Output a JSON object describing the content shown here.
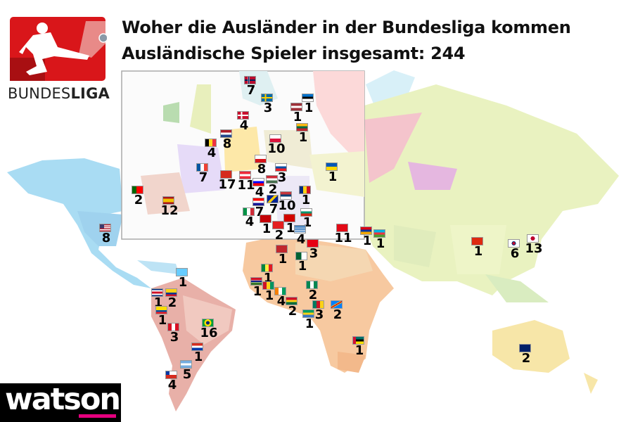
{
  "header": {
    "title": "Woher die Ausländer in der Bundesliga kommen",
    "subtitle": "Ausländische Spieler insgesamt: 244"
  },
  "logo": {
    "bundesliga_light": "BUNDES",
    "bundesliga_bold": "LIGA"
  },
  "brand": {
    "watson": "watson",
    "watson_accent": "#e5007e",
    "bundesliga_red": "#d9161a"
  },
  "markers": [
    {
      "flag": "norway-flag",
      "count": "7"
    },
    {
      "flag": "sweden-flag",
      "count": "3"
    },
    {
      "flag": "estonia-flag",
      "count": "1"
    },
    {
      "flag": "latvia-flag",
      "count": "1"
    },
    {
      "flag": "denmark-flag",
      "count": "4"
    },
    {
      "flag": "lithuania-flag",
      "count": "1"
    },
    {
      "flag": "netherlands-flag",
      "count": "8"
    },
    {
      "flag": "belgium-flag",
      "count": "4"
    },
    {
      "flag": "poland-flag",
      "count": "10"
    },
    {
      "flag": "czech-republic-flag",
      "count": "8"
    },
    {
      "flag": "slovakia-flag",
      "count": "3"
    },
    {
      "flag": "ukraine-flag",
      "count": "1"
    },
    {
      "flag": "france-flag",
      "count": "7"
    },
    {
      "flag": "switzerland-flag",
      "count": "17"
    },
    {
      "flag": "austria-flag",
      "count": "11"
    },
    {
      "flag": "slovenia-flag",
      "count": "4"
    },
    {
      "flag": "hungary-flag",
      "count": "2"
    },
    {
      "flag": "romania-flag",
      "count": "1"
    },
    {
      "flag": "serbia-flag",
      "count": "10"
    },
    {
      "flag": "portugal-flag",
      "count": "2"
    },
    {
      "flag": "spain-flag",
      "count": "12"
    },
    {
      "flag": "croatia-flag",
      "count": "7"
    },
    {
      "flag": "bosnia-flag",
      "count": "7"
    },
    {
      "flag": "bulgaria-flag",
      "count": "1"
    },
    {
      "flag": "italy-flag",
      "count": "4"
    },
    {
      "flag": "montenegro-flag",
      "count": "1"
    },
    {
      "flag": "albania-flag",
      "count": "2"
    },
    {
      "flag": "macedonia-flag",
      "count": "1"
    },
    {
      "flag": "greece-flag",
      "count": "4"
    },
    {
      "flag": "turkey-flag",
      "count": "11"
    },
    {
      "flag": "armenia-flag",
      "count": "1"
    },
    {
      "flag": "azerbaijan-flag",
      "count": "1"
    },
    {
      "flag": "tunisia-flag",
      "count": "3"
    },
    {
      "flag": "morocco-flag",
      "count": "1"
    },
    {
      "flag": "algeria-flag",
      "count": "1"
    },
    {
      "flag": "senegal-flag",
      "count": "1"
    },
    {
      "flag": "gambia-flag",
      "count": "1"
    },
    {
      "flag": "guinea-flag",
      "count": "1"
    },
    {
      "flag": "ivory-coast-flag",
      "count": "4"
    },
    {
      "flag": "nigeria-flag",
      "count": "2"
    },
    {
      "flag": "ghana-flag",
      "count": "2"
    },
    {
      "flag": "cameroon-flag",
      "count": "3"
    },
    {
      "flag": "dr-congo-flag",
      "count": "2"
    },
    {
      "flag": "gabon-flag",
      "count": "1"
    },
    {
      "flag": "mozambique-flag",
      "count": "1"
    },
    {
      "flag": "usa-flag",
      "count": "8"
    },
    {
      "flag": "china-flag",
      "count": "1"
    },
    {
      "flag": "south-korea-flag",
      "count": "6"
    },
    {
      "flag": "japan-flag",
      "count": "13"
    },
    {
      "flag": "australia-flag",
      "count": "2"
    },
    {
      "flag": "saint-lucia-flag",
      "count": "1"
    },
    {
      "flag": "costa-rica-flag",
      "count": "1"
    },
    {
      "flag": "colombia-flag",
      "count": "2"
    },
    {
      "flag": "ecuador-flag",
      "count": "1"
    },
    {
      "flag": "peru-flag",
      "count": "3"
    },
    {
      "flag": "brazil-flag",
      "count": "16"
    },
    {
      "flag": "paraguay-flag",
      "count": "1"
    },
    {
      "flag": "argentina-flag",
      "count": "5"
    },
    {
      "flag": "chile-flag",
      "count": "4"
    }
  ]
}
